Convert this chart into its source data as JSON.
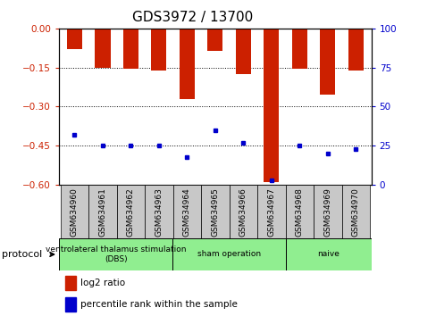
{
  "title": "GDS3972 / 13700",
  "samples": [
    "GSM634960",
    "GSM634961",
    "GSM634962",
    "GSM634963",
    "GSM634964",
    "GSM634965",
    "GSM634966",
    "GSM634967",
    "GSM634968",
    "GSM634969",
    "GSM634970"
  ],
  "log2_ratio": [
    -0.08,
    -0.15,
    -0.155,
    -0.16,
    -0.27,
    -0.085,
    -0.175,
    -0.59,
    -0.155,
    -0.255,
    -0.16
  ],
  "percentile_rank": [
    32,
    25,
    25,
    25,
    18,
    35,
    27,
    3,
    25,
    20,
    23
  ],
  "group_boundaries": [
    0,
    4,
    8,
    11
  ],
  "group_labels": [
    "ventrolateral thalamus stimulation\n(DBS)",
    "sham operation",
    "naive"
  ],
  "group_color": "#90ee90",
  "ylim_left": [
    -0.6,
    0.0
  ],
  "ylim_right": [
    0,
    100
  ],
  "yticks_left": [
    0.0,
    -0.15,
    -0.3,
    -0.45,
    -0.6
  ],
  "yticks_right": [
    0,
    25,
    50,
    75,
    100
  ],
  "bar_color": "#cc2000",
  "marker_color": "#0000cc",
  "plot_bg": "#ffffff",
  "title_fontsize": 11,
  "left_tick_color": "#cc2000",
  "right_tick_color": "#0000cc",
  "grid_color": "#000000",
  "label_bg_color": "#c8c8c8"
}
